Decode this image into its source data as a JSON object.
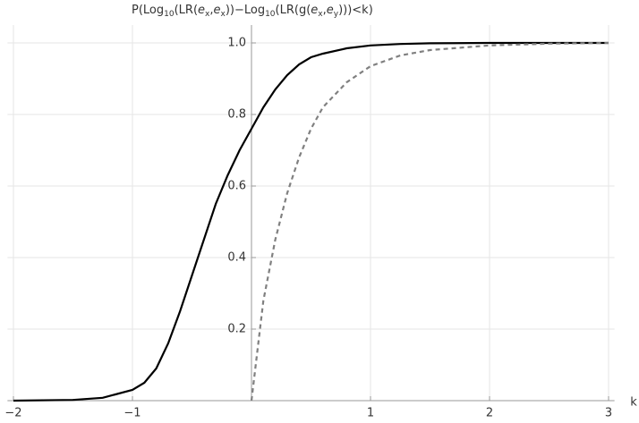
{
  "chart_data": {
    "type": "line",
    "title": [
      {
        "text": "P(Log"
      },
      {
        "text": "10",
        "sub": true
      },
      {
        "text": "(LR("
      },
      {
        "text": "e",
        "italic": true
      },
      {
        "text": "x",
        "sub": true
      },
      {
        "text": ","
      },
      {
        "text": "e",
        "italic": true
      },
      {
        "text": "x",
        "sub": true
      },
      {
        "text": "))−Log"
      },
      {
        "text": "10",
        "sub": true
      },
      {
        "text": "(LR(g("
      },
      {
        "text": "e",
        "italic": true
      },
      {
        "text": "x",
        "sub": true
      },
      {
        "text": ","
      },
      {
        "text": "e",
        "italic": true
      },
      {
        "text": "y",
        "sub": true
      },
      {
        "text": ")))<k)"
      }
    ],
    "x_label": "k",
    "x": [
      -2,
      -1.5,
      -1.25,
      -1,
      -0.9,
      -0.8,
      -0.7,
      -0.6,
      -0.5,
      -0.4,
      -0.3,
      -0.2,
      -0.1,
      0,
      0.1,
      0.2,
      0.3,
      0.4,
      0.5,
      0.6,
      0.8,
      1,
      1.25,
      1.5,
      2,
      2.5,
      3
    ],
    "series": [
      {
        "color": "#000000",
        "dash": false,
        "values": [
          0,
          0.002,
          0.008,
          0.03,
          0.05,
          0.09,
          0.16,
          0.25,
          0.35,
          0.45,
          0.55,
          0.63,
          0.7,
          0.76,
          0.82,
          0.87,
          0.91,
          0.94,
          0.96,
          0.97,
          0.985,
          0.993,
          0.997,
          0.999,
          1,
          1,
          1
        ]
      },
      {
        "color": "#808080",
        "dash": true,
        "values": [
          null,
          null,
          null,
          null,
          null,
          null,
          null,
          null,
          null,
          null,
          null,
          null,
          null,
          0,
          0.28,
          0.45,
          0.58,
          0.68,
          0.76,
          0.82,
          0.89,
          0.935,
          0.965,
          0.98,
          0.993,
          0.998,
          1
        ]
      }
    ],
    "xlim": [
      -2.05,
      3.05
    ],
    "ylim": [
      0,
      1.05
    ],
    "xticks": [
      {
        "value": -2,
        "label": "−2"
      },
      {
        "value": -1,
        "label": "−1"
      },
      1,
      2,
      3
    ],
    "yticks": [
      0.2,
      0.4,
      0.6,
      0.8,
      {
        "value": 1,
        "label": "1.0"
      }
    ],
    "grid": true
  }
}
